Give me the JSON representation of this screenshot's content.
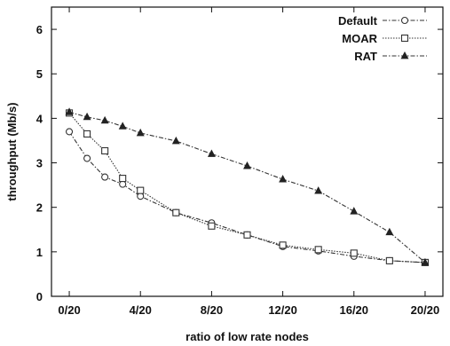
{
  "chart_data": {
    "type": "line",
    "title": "",
    "xlabel": "ratio of low rate nodes",
    "ylabel": "throughput (Mb/s)",
    "xlim": [
      -1,
      21
    ],
    "ylim": [
      0,
      6.5
    ],
    "x_ticks": [
      {
        "value": 0,
        "label": "0/20"
      },
      {
        "value": 4,
        "label": "4/20"
      },
      {
        "value": 8,
        "label": "8/20"
      },
      {
        "value": 12,
        "label": "12/20"
      },
      {
        "value": 16,
        "label": "16/20"
      },
      {
        "value": 20,
        "label": "20/20"
      }
    ],
    "y_ticks": [
      {
        "value": 0,
        "label": "0"
      },
      {
        "value": 1,
        "label": "1"
      },
      {
        "value": 2,
        "label": "2"
      },
      {
        "value": 3,
        "label": "3"
      },
      {
        "value": 4,
        "label": "4"
      },
      {
        "value": 5,
        "label": "5"
      },
      {
        "value": 6,
        "label": "6"
      }
    ],
    "grid": false,
    "legend_position": "top-right",
    "series": [
      {
        "name": "Default",
        "marker": "circle",
        "line_style": "dash-dot",
        "color": "#333333",
        "x": [
          0,
          1,
          2,
          3,
          4,
          6,
          8,
          10,
          12,
          14,
          16,
          18,
          20
        ],
        "y": [
          3.7,
          3.1,
          2.68,
          2.52,
          2.25,
          1.88,
          1.65,
          1.38,
          1.12,
          1.02,
          0.9,
          0.8,
          0.76
        ]
      },
      {
        "name": "MOAR",
        "marker": "square",
        "line_style": "dotted",
        "color": "#333333",
        "x": [
          0,
          1,
          2,
          3,
          4,
          6,
          8,
          10,
          12,
          14,
          16,
          18,
          20
        ],
        "y": [
          4.12,
          3.65,
          3.27,
          2.65,
          2.38,
          1.88,
          1.58,
          1.38,
          1.15,
          1.05,
          0.97,
          0.8,
          0.76
        ]
      },
      {
        "name": "RAT",
        "marker": "triangle",
        "line_style": "dash-dot",
        "color": "#333333",
        "x": [
          0,
          1,
          2,
          3,
          4,
          6,
          8,
          10,
          12,
          14,
          16,
          18,
          20
        ],
        "y": [
          4.14,
          4.03,
          3.95,
          3.82,
          3.67,
          3.49,
          3.2,
          2.93,
          2.63,
          2.37,
          1.91,
          1.44,
          0.76
        ]
      }
    ]
  }
}
